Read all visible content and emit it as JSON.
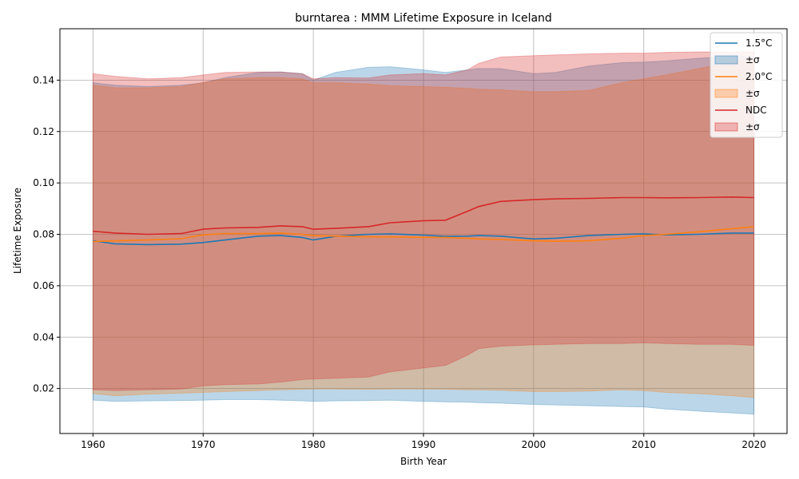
{
  "chart_data": {
    "type": "line",
    "title": "burntarea : MMM Lifetime Exposure in Iceland",
    "xlabel": "Birth Year",
    "ylabel": "Lifetime Exposure",
    "xlim": [
      1957,
      2023
    ],
    "ylim": [
      0.0025,
      0.16
    ],
    "xticks": [
      1960,
      1970,
      1980,
      1990,
      2000,
      2010,
      2020
    ],
    "yticks": [
      0.02,
      0.04,
      0.06,
      0.08,
      0.1,
      0.12,
      0.14
    ],
    "ytick_labels": [
      "0.02",
      "0.04",
      "0.06",
      "0.08",
      "0.10",
      "0.12",
      "0.14"
    ],
    "grid": true,
    "legend_position": "top-right",
    "x": [
      1960,
      1962,
      1965,
      1968,
      1970,
      1972,
      1975,
      1977,
      1979,
      1980,
      1982,
      1985,
      1987,
      1990,
      1992,
      1994,
      1995,
      1997,
      2000,
      2002,
      2005,
      2008,
      2010,
      2012,
      2015,
      2018,
      2020
    ],
    "series": [
      {
        "name": "1.5°C",
        "band_label": "±σ",
        "color": "#1f77b4",
        "band_color": "#1f77b4",
        "values": [
          0.0775,
          0.0763,
          0.076,
          0.0762,
          0.0768,
          0.0778,
          0.0793,
          0.0795,
          0.0788,
          0.0778,
          0.0792,
          0.08,
          0.0802,
          0.0797,
          0.0792,
          0.0793,
          0.0795,
          0.0793,
          0.0782,
          0.0785,
          0.0795,
          0.08,
          0.0802,
          0.0798,
          0.08,
          0.0805,
          0.0805
        ],
        "upper": [
          0.139,
          0.138,
          0.1375,
          0.138,
          0.139,
          0.141,
          0.143,
          0.1432,
          0.1425,
          0.14,
          0.143,
          0.145,
          0.1452,
          0.144,
          0.143,
          0.144,
          0.1445,
          0.1445,
          0.1425,
          0.143,
          0.1455,
          0.1468,
          0.147,
          0.1475,
          0.1485,
          0.1492,
          0.1492
        ],
        "lower": [
          0.0155,
          0.015,
          0.0152,
          0.0153,
          0.0155,
          0.0157,
          0.0157,
          0.0155,
          0.0152,
          0.015,
          0.0152,
          0.0153,
          0.0155,
          0.015,
          0.0148,
          0.0147,
          0.0145,
          0.0143,
          0.0138,
          0.0136,
          0.0133,
          0.013,
          0.0128,
          0.012,
          0.0112,
          0.0105,
          0.01
        ]
      },
      {
        "name": "2.0°C",
        "band_label": "±σ",
        "color": "#ff7f0e",
        "band_color": "#ff7f0e",
        "values": [
          0.0772,
          0.0775,
          0.0778,
          0.0783,
          0.0798,
          0.0803,
          0.0803,
          0.0805,
          0.08,
          0.0795,
          0.0793,
          0.079,
          0.079,
          0.0788,
          0.0788,
          0.0785,
          0.0782,
          0.078,
          0.0775,
          0.0773,
          0.0775,
          0.0785,
          0.0795,
          0.08,
          0.081,
          0.0822,
          0.083
        ],
        "upper": [
          0.138,
          0.137,
          0.137,
          0.1375,
          0.139,
          0.1405,
          0.141,
          0.141,
          0.1405,
          0.139,
          0.139,
          0.1385,
          0.1378,
          0.1375,
          0.1372,
          0.1368,
          0.1365,
          0.1362,
          0.1355,
          0.1355,
          0.136,
          0.139,
          0.1405,
          0.142,
          0.1445,
          0.147,
          0.1482
        ],
        "lower": [
          0.018,
          0.0172,
          0.0178,
          0.0182,
          0.0185,
          0.0188,
          0.0192,
          0.0195,
          0.0197,
          0.0198,
          0.0198,
          0.0197,
          0.0198,
          0.0198,
          0.0197,
          0.0195,
          0.0195,
          0.0193,
          0.0188,
          0.0188,
          0.019,
          0.0195,
          0.0192,
          0.0185,
          0.018,
          0.0172,
          0.0165
        ]
      },
      {
        "name": "NDC",
        "band_label": "±σ",
        "color": "#d62728",
        "band_color": "#d62728",
        "values": [
          0.0812,
          0.0805,
          0.08,
          0.0803,
          0.082,
          0.0825,
          0.0827,
          0.0833,
          0.083,
          0.082,
          0.0823,
          0.083,
          0.0845,
          0.0853,
          0.0855,
          0.089,
          0.0908,
          0.0928,
          0.0935,
          0.0938,
          0.094,
          0.0943,
          0.0943,
          0.0942,
          0.0943,
          0.0945,
          0.0943
        ],
        "upper": [
          0.1425,
          0.1415,
          0.1405,
          0.141,
          0.142,
          0.143,
          0.1432,
          0.1432,
          0.1425,
          0.1405,
          0.141,
          0.1408,
          0.142,
          0.1425,
          0.142,
          0.144,
          0.1465,
          0.149,
          0.1495,
          0.1498,
          0.1502,
          0.1505,
          0.1505,
          0.1508,
          0.151,
          0.151,
          0.151
        ],
        "lower": [
          0.0195,
          0.0192,
          0.0195,
          0.0198,
          0.021,
          0.0215,
          0.0218,
          0.0225,
          0.0235,
          0.0237,
          0.024,
          0.0245,
          0.0265,
          0.028,
          0.029,
          0.033,
          0.0355,
          0.0365,
          0.037,
          0.0372,
          0.0375,
          0.0375,
          0.0378,
          0.0375,
          0.0372,
          0.0372,
          0.0368
        ]
      }
    ]
  }
}
